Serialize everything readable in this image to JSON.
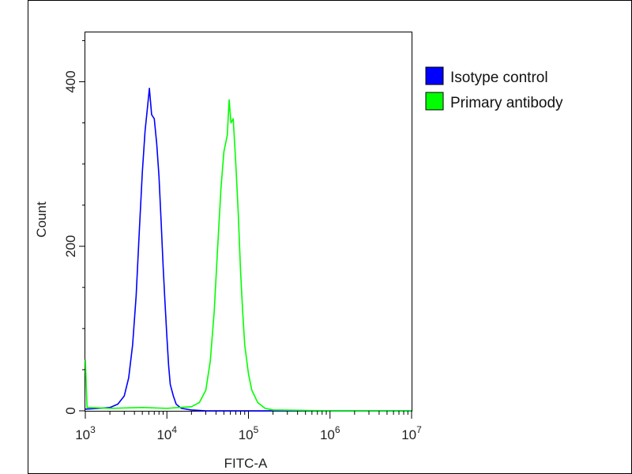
{
  "chart_data": {
    "type": "line",
    "xlabel": "FITC-A",
    "ylabel": "Count",
    "x_scale": "log",
    "xlim": [
      1000,
      10000000
    ],
    "ylim": [
      0,
      460
    ],
    "x_ticks": [
      {
        "value": 1000,
        "base": "10",
        "exp": "3"
      },
      {
        "value": 10000,
        "base": "10",
        "exp": "4"
      },
      {
        "value": 100000,
        "base": "10",
        "exp": "5"
      },
      {
        "value": 1000000,
        "base": "10",
        "exp": "6"
      },
      {
        "value": 10000000,
        "base": "10",
        "exp": "7"
      }
    ],
    "y_ticks": [
      {
        "value": 0,
        "label": "0"
      },
      {
        "value": 200,
        "label": "200"
      },
      {
        "value": 400,
        "label": "400"
      }
    ],
    "grid": false,
    "legend_position": "top-right, outside plot",
    "series": [
      {
        "name": "Isotype control",
        "color": "#0000ff",
        "points": [
          [
            1000,
            2
          ],
          [
            1500,
            3
          ],
          [
            2000,
            4
          ],
          [
            2500,
            8
          ],
          [
            3000,
            18
          ],
          [
            3400,
            40
          ],
          [
            3800,
            80
          ],
          [
            4200,
            140
          ],
          [
            4600,
            220
          ],
          [
            5000,
            290
          ],
          [
            5400,
            340
          ],
          [
            5800,
            370
          ],
          [
            6100,
            392
          ],
          [
            6500,
            360
          ],
          [
            7000,
            355
          ],
          [
            7500,
            325
          ],
          [
            8000,
            285
          ],
          [
            8500,
            230
          ],
          [
            9000,
            175
          ],
          [
            9500,
            130
          ],
          [
            10000,
            90
          ],
          [
            10500,
            55
          ],
          [
            11000,
            32
          ],
          [
            12000,
            18
          ],
          [
            13000,
            8
          ],
          [
            15000,
            3
          ],
          [
            20000,
            1
          ],
          [
            30000,
            0
          ],
          [
            100000,
            0
          ],
          [
            10000000,
            0
          ]
        ]
      },
      {
        "name": "Primary antibody",
        "color": "#00ff00",
        "points": [
          [
            1000,
            62
          ],
          [
            1050,
            4
          ],
          [
            2000,
            3
          ],
          [
            5000,
            4
          ],
          [
            10000,
            3
          ],
          [
            20000,
            5
          ],
          [
            25000,
            10
          ],
          [
            30000,
            25
          ],
          [
            34000,
            60
          ],
          [
            38000,
            120
          ],
          [
            42000,
            200
          ],
          [
            46000,
            270
          ],
          [
            50000,
            315
          ],
          [
            55000,
            335
          ],
          [
            58000,
            378
          ],
          [
            61000,
            350
          ],
          [
            65000,
            355
          ],
          [
            70000,
            300
          ],
          [
            75000,
            240
          ],
          [
            80000,
            170
          ],
          [
            85000,
            120
          ],
          [
            90000,
            80
          ],
          [
            100000,
            45
          ],
          [
            110000,
            25
          ],
          [
            130000,
            10
          ],
          [
            160000,
            3
          ],
          [
            200000,
            1
          ],
          [
            1000000,
            0
          ],
          [
            10000000,
            0
          ]
        ]
      }
    ]
  }
}
